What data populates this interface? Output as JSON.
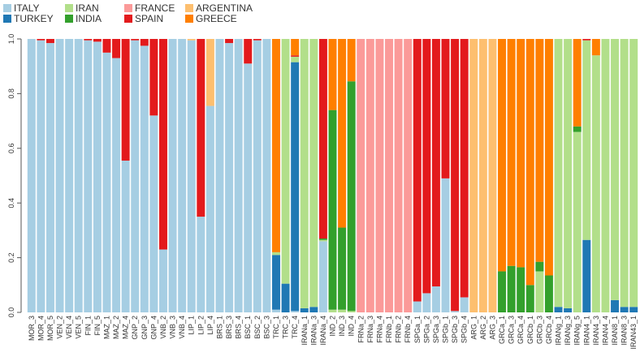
{
  "chart_data": {
    "type": "bar",
    "stacked": true,
    "ylim": [
      0,
      1
    ],
    "yticks": [
      "0.0",
      "0.2",
      "0.4",
      "0.6",
      "0.8",
      "1.0"
    ],
    "grid": false,
    "legend_position": "top-left",
    "legend": [
      {
        "name": "ITALY",
        "color": "#a6cee3"
      },
      {
        "name": "TURKEY",
        "color": "#1f78b4"
      },
      {
        "name": "IRAN",
        "color": "#b2df8a"
      },
      {
        "name": "INDIA",
        "color": "#33a02c"
      },
      {
        "name": "FRANCE",
        "color": "#fb9a99"
      },
      {
        "name": "SPAIN",
        "color": "#e31a1c"
      },
      {
        "name": "ARGENTINA",
        "color": "#fdbf6f"
      },
      {
        "name": "GREECE",
        "color": "#ff7f00"
      }
    ],
    "series": [
      "ITALY",
      "TURKEY",
      "IRAN",
      "INDIA",
      "FRANCE",
      "SPAIN",
      "ARGENTINA",
      "GREECE"
    ],
    "categories": [
      "MOR_3",
      "MOR_4",
      "MOR_5",
      "VEN_2",
      "VEN_4",
      "VEN_5",
      "FIN_1",
      "FIN_5",
      "MAZ_1",
      "MAZ_2",
      "MAZ_4",
      "GNP_2",
      "GNP_3",
      "GNP_4",
      "VNB_2",
      "VNB_3",
      "VNB_4",
      "LIP_1",
      "LIP_2",
      "LIP_4",
      "BRS_1",
      "BRS_3",
      "BRS_4",
      "BSC_1",
      "BSC_2",
      "BSC_3",
      "TRC_1",
      "TRC_3",
      "TRC_4",
      "IRANa_1",
      "IRANa_3",
      "IRANa_4",
      "IND_2",
      "IND_3",
      "IND_4",
      "FRNa_2",
      "FRNa_3",
      "FRNa_4",
      "FRNb_1",
      "FRNb_2",
      "FRNb_4",
      "SPGa_1",
      "SPGa_2",
      "SPGa_3",
      "SPGb_1",
      "SPGb_3",
      "SPGb_4",
      "ARG_1",
      "ARG_2",
      "ARG_3",
      "GRCa_1",
      "GRCa_3",
      "GRCa_4",
      "GRCb_1",
      "GRCb_3",
      "GRCb_4",
      "IRANg_1",
      "IRANg_3",
      "IRANg_5",
      "IRAN4_1",
      "IRAN4_3",
      "IRAN4_4",
      "IRAN8_1",
      "IRAN8_3",
      "IRAN43_1"
    ],
    "bars": [
      {
        "ITALY": 1.0
      },
      {
        "ITALY": 0.995,
        "SPAIN": 0.005
      },
      {
        "ITALY": 0.985,
        "SPAIN": 0.015
      },
      {
        "ITALY": 1.0
      },
      {
        "ITALY": 1.0
      },
      {
        "ITALY": 1.0
      },
      {
        "ITALY": 0.995,
        "SPAIN": 0.005
      },
      {
        "ITALY": 0.99,
        "SPAIN": 0.01
      },
      {
        "ITALY": 0.95,
        "SPAIN": 0.05
      },
      {
        "ITALY": 0.93,
        "SPAIN": 0.07
      },
      {
        "ITALY": 0.555,
        "SPAIN": 0.445
      },
      {
        "ITALY": 0.995,
        "SPAIN": 0.005
      },
      {
        "ITALY": 0.975,
        "SPAIN": 0.025
      },
      {
        "ITALY": 0.72,
        "SPAIN": 0.28
      },
      {
        "ITALY": 0.23,
        "SPAIN": 0.77
      },
      {
        "ITALY": 1.0
      },
      {
        "ITALY": 1.0
      },
      {
        "ITALY": 0.995,
        "ARGENTINA": 0.005
      },
      {
        "ITALY": 0.35,
        "SPAIN": 0.65
      },
      {
        "ITALY": 0.755,
        "ARGENTINA": 0.245
      },
      {
        "ITALY": 1.0
      },
      {
        "ITALY": 0.985,
        "SPAIN": 0.015
      },
      {
        "ITALY": 1.0
      },
      {
        "ITALY": 0.91,
        "SPAIN": 0.09
      },
      {
        "ITALY": 0.995,
        "SPAIN": 0.005
      },
      {
        "ITALY": 1.0
      },
      {
        "TURKEY": 0.2,
        "ITALY": 0.01,
        "IRAN": 0.01,
        "GREECE": 0.78
      },
      {
        "TURKEY": 0.105,
        "IRAN": 0.895
      },
      {
        "TURKEY": 0.91,
        "ITALY": 0.005,
        "IRAN": 0.02,
        "SPAIN": 0.005,
        "GREECE": 0.06
      },
      {
        "TURKEY": 0.015,
        "IRAN": 0.985
      },
      {
        "TURKEY": 0.02,
        "IRAN": 0.98
      },
      {
        "ITALY": 0.26,
        "IRAN": 0.005,
        "INDIA": 0.005,
        "SPAIN": 0.73
      },
      {
        "IRAN": 0.01,
        "INDIA": 0.73,
        "GREECE": 0.26
      },
      {
        "IRAN": 0.01,
        "INDIA": 0.3,
        "GREECE": 0.69
      },
      {
        "IRAN": 0.005,
        "INDIA": 0.84,
        "GREECE": 0.155
      },
      {
        "FRANCE": 1.0
      },
      {
        "FRANCE": 1.0
      },
      {
        "FRANCE": 1.0
      },
      {
        "FRANCE": 1.0
      },
      {
        "FRANCE": 1.0
      },
      {
        "FRANCE": 1.0
      },
      {
        "ITALY": 0.04,
        "SPAIN": 0.96
      },
      {
        "ITALY": 0.07,
        "SPAIN": 0.93
      },
      {
        "ITALY": 0.095,
        "SPAIN": 0.905
      },
      {
        "ITALY": 0.49,
        "SPAIN": 0.51
      },
      {
        "ITALY": 0.005,
        "SPAIN": 0.995
      },
      {
        "ITALY": 0.055,
        "SPAIN": 0.945
      },
      {
        "ARGENTINA": 1.0
      },
      {
        "ARGENTINA": 1.0
      },
      {
        "ARGENTINA": 1.0
      },
      {
        "INDIA": 0.15,
        "GREECE": 0.85
      },
      {
        "INDIA": 0.17,
        "GREECE": 0.83
      },
      {
        "INDIA": 0.165,
        "GREECE": 0.835
      },
      {
        "INDIA": 0.1,
        "GREECE": 0.9
      },
      {
        "IRAN": 0.15,
        "INDIA": 0.035,
        "GREECE": 0.815
      },
      {
        "INDIA": 0.135,
        "GREECE": 0.865
      },
      {
        "TURKEY": 0.02,
        "IRAN": 0.98
      },
      {
        "TURKEY": 0.015,
        "IRAN": 0.985
      },
      {
        "IRAN": 0.66,
        "INDIA": 0.02,
        "GREECE": 0.32
      },
      {
        "TURKEY": 0.265,
        "IRAN": 0.73,
        "SPAIN": 0.005
      },
      {
        "IRAN": 0.94,
        "GREECE": 0.06
      },
      {
        "IRAN": 1.0
      },
      {
        "TURKEY": 0.045,
        "IRAN": 0.955
      },
      {
        "TURKEY": 0.02,
        "IRAN": 0.98
      },
      {
        "TURKEY": 0.02,
        "IRAN": 0.98
      }
    ]
  }
}
